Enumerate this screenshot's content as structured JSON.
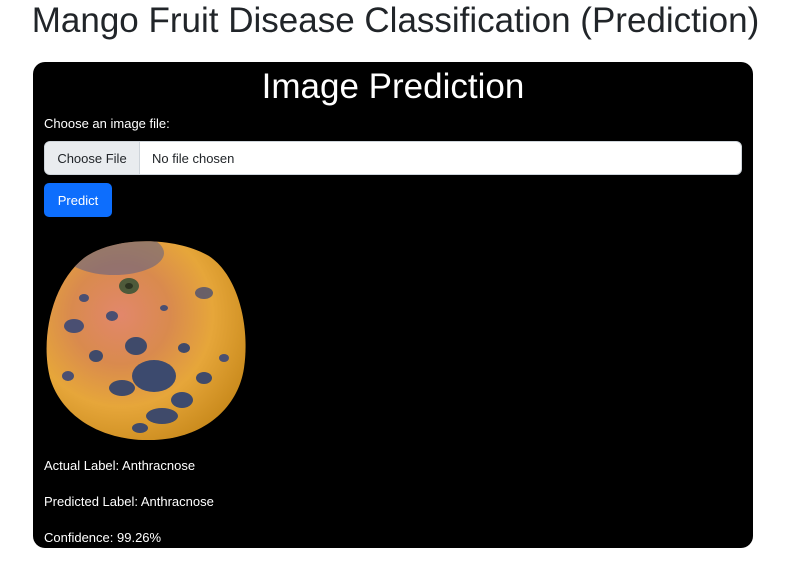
{
  "page": {
    "title": "Mango Fruit Disease Classification (Prediction)"
  },
  "panel": {
    "title": "Image Prediction",
    "file_label": "Choose an image file:",
    "file_button": "Choose File",
    "file_status": "No file chosen",
    "predict_button": "Predict"
  },
  "results": {
    "actual": "Actual Label: Anthracnose",
    "predicted": "Predicted Label: Anthracnose",
    "confidence": "Confidence: 99.26%"
  },
  "colors": {
    "panel_bg": "#000000",
    "accent": "#0d6efd"
  }
}
